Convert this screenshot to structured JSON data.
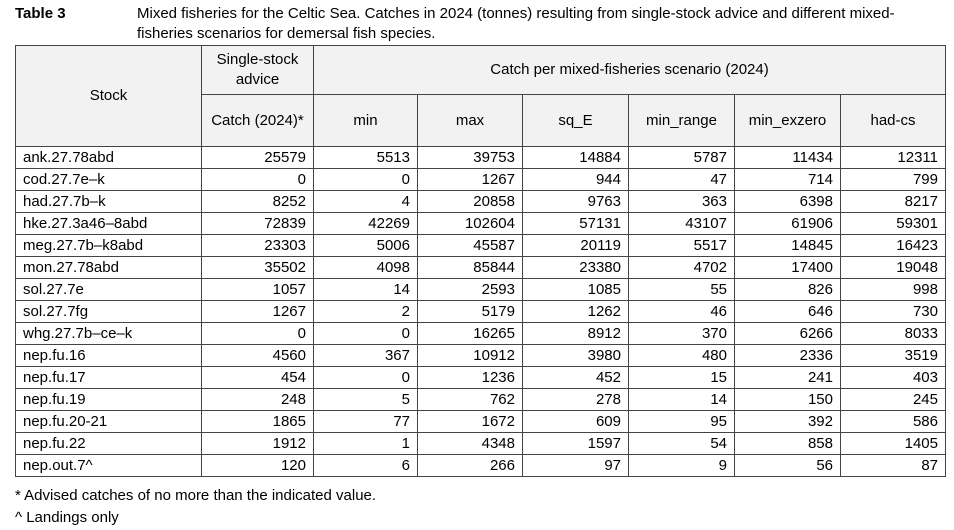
{
  "caption": {
    "label": "Table 3",
    "text": "Mixed fisheries for the Celtic Sea. Catches in 2024 (tonnes) resulting from single-stock advice and different mixed-fisheries scenarios for demersal fish species."
  },
  "header": {
    "stock": "Stock",
    "single_stock_advice": "Single-stock advice",
    "catch_group": "Catch per mixed-fisheries scenario (2024)",
    "catch_2024": "Catch (2024)*",
    "scenarios": [
      "min",
      "max",
      "sq_E",
      "min_range",
      "min_exzero",
      "had-cs"
    ]
  },
  "rows": [
    {
      "stock": "ank.27.78abd",
      "advice": "25579",
      "values": [
        "5513",
        "39753",
        "14884",
        "5787",
        "11434",
        "12311"
      ]
    },
    {
      "stock": "cod.27.7e–k",
      "advice": "0",
      "values": [
        "0",
        "1267",
        "944",
        "47",
        "714",
        "799"
      ]
    },
    {
      "stock": "had.27.7b–k",
      "advice": "8252",
      "values": [
        "4",
        "20858",
        "9763",
        "363",
        "6398",
        "8217"
      ]
    },
    {
      "stock": "hke.27.3a46–8abd",
      "advice": "72839",
      "values": [
        "42269",
        "102604",
        "57131",
        "43107",
        "61906",
        "59301"
      ]
    },
    {
      "stock": "meg.27.7b–k8abd",
      "advice": "23303",
      "values": [
        "5006",
        "45587",
        "20119",
        "5517",
        "14845",
        "16423"
      ]
    },
    {
      "stock": "mon.27.78abd",
      "advice": "35502",
      "values": [
        "4098",
        "85844",
        "23380",
        "4702",
        "17400",
        "19048"
      ]
    },
    {
      "stock": "sol.27.7e",
      "advice": "1057",
      "values": [
        "14",
        "2593",
        "1085",
        "55",
        "826",
        "998"
      ]
    },
    {
      "stock": "sol.27.7fg",
      "advice": "1267",
      "values": [
        "2",
        "5179",
        "1262",
        "46",
        "646",
        "730"
      ]
    },
    {
      "stock": "whg.27.7b–ce–k",
      "advice": "0",
      "values": [
        "0",
        "16265",
        "8912",
        "370",
        "6266",
        "8033"
      ]
    },
    {
      "stock": "nep.fu.16",
      "advice": "4560",
      "values": [
        "367",
        "10912",
        "3980",
        "480",
        "2336",
        "3519"
      ]
    },
    {
      "stock": "nep.fu.17",
      "advice": "454",
      "values": [
        "0",
        "1236",
        "452",
        "15",
        "241",
        "403"
      ]
    },
    {
      "stock": "nep.fu.19",
      "advice": "248",
      "values": [
        "5",
        "762",
        "278",
        "14",
        "150",
        "245"
      ]
    },
    {
      "stock": "nep.fu.20-21",
      "advice": "1865",
      "values": [
        "77",
        "1672",
        "609",
        "95",
        "392",
        "586"
      ]
    },
    {
      "stock": "nep.fu.22",
      "advice": "1912",
      "values": [
        "1",
        "4348",
        "1597",
        "54",
        "858",
        "1405"
      ]
    },
    {
      "stock": "nep.out.7^",
      "advice": "120",
      "values": [
        "6",
        "266",
        "97",
        "9",
        "56",
        "87"
      ]
    }
  ],
  "footnotes": [
    "* Advised catches of no more than the indicated value.",
    "^ Landings only"
  ]
}
